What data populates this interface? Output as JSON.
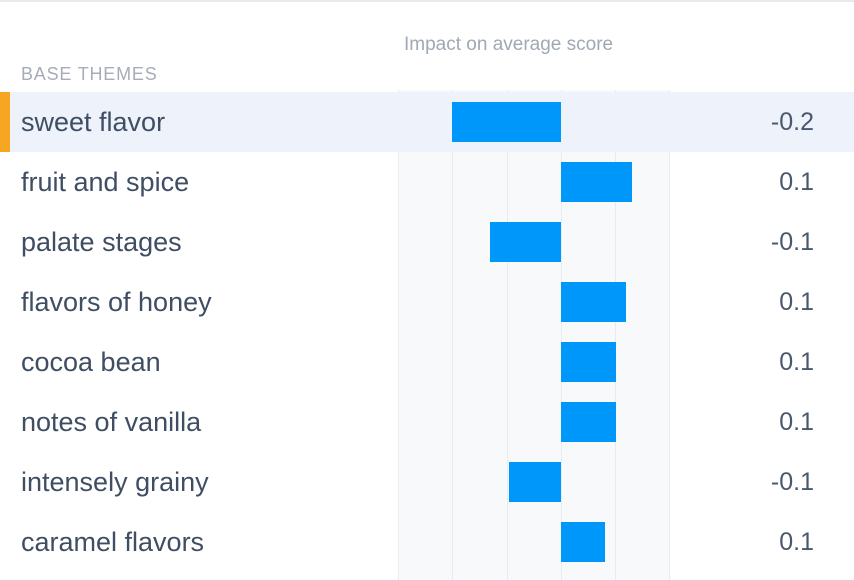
{
  "header": {
    "chart_title": "Impact on average score",
    "section_label": "BASE THEMES"
  },
  "colors": {
    "bar": "#0097fa",
    "selected_marker": "#f6a623",
    "selected_row_bg": "#edf2fb"
  },
  "selected_index": 0,
  "chart_data": {
    "type": "bar",
    "orientation": "horizontal",
    "title": "Impact on average score",
    "categories": [
      "sweet flavor",
      "fruit and spice",
      "palate stages",
      "flavors of honey",
      "cocoa bean",
      "notes of vanilla",
      "intensely grainy",
      "caramel flavors"
    ],
    "values": [
      -0.2,
      0.13,
      -0.13,
      0.12,
      0.1,
      0.1,
      -0.095,
      0.08
    ],
    "value_labels": [
      "-0.2",
      "0.1",
      "-0.1",
      "0.1",
      "0.1",
      "0.1",
      "-0.1",
      "0.1"
    ],
    "xlim": [
      -0.3,
      0.2
    ],
    "grid": true
  }
}
